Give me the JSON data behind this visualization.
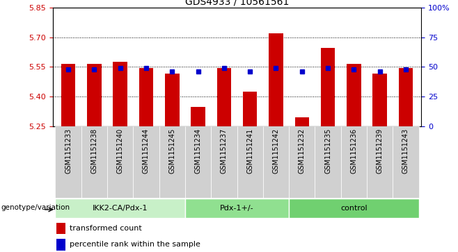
{
  "title": "GDS4933 / 10561561",
  "samples": [
    "GSM1151233",
    "GSM1151238",
    "GSM1151240",
    "GSM1151244",
    "GSM1151245",
    "GSM1151234",
    "GSM1151237",
    "GSM1151241",
    "GSM1151242",
    "GSM1151232",
    "GSM1151235",
    "GSM1151236",
    "GSM1151239",
    "GSM1151243"
  ],
  "bar_values": [
    5.565,
    5.565,
    5.575,
    5.545,
    5.515,
    5.345,
    5.545,
    5.425,
    5.72,
    5.295,
    5.645,
    5.565,
    5.515,
    5.545
  ],
  "percentile_values": [
    5.535,
    5.535,
    5.545,
    5.545,
    5.525,
    5.525,
    5.545,
    5.525,
    5.545,
    5.525,
    5.545,
    5.535,
    5.525,
    5.535
  ],
  "y_base": 5.25,
  "ylim_min": 5.25,
  "ylim_max": 5.85,
  "yticks_left": [
    5.25,
    5.4,
    5.55,
    5.7,
    5.85
  ],
  "yticks_right": [
    0,
    25,
    50,
    75,
    100
  ],
  "groups": [
    {
      "label": "IKK2-CA/Pdx-1",
      "start": 0,
      "end": 5,
      "color": "#c8f0c8"
    },
    {
      "label": "Pdx-1+/-",
      "start": 5,
      "end": 9,
      "color": "#90e090"
    },
    {
      "label": "control",
      "start": 9,
      "end": 14,
      "color": "#70d070"
    }
  ],
  "bar_color": "#cc0000",
  "blue_color": "#0000cc",
  "bar_width": 0.55,
  "legend_labels": [
    "transformed count",
    "percentile rank within the sample"
  ],
  "genotype_label": "genotype/variation",
  "tick_bg_color": "#d0d0d0",
  "xlim_left": -0.6,
  "xlim_right": 13.6
}
